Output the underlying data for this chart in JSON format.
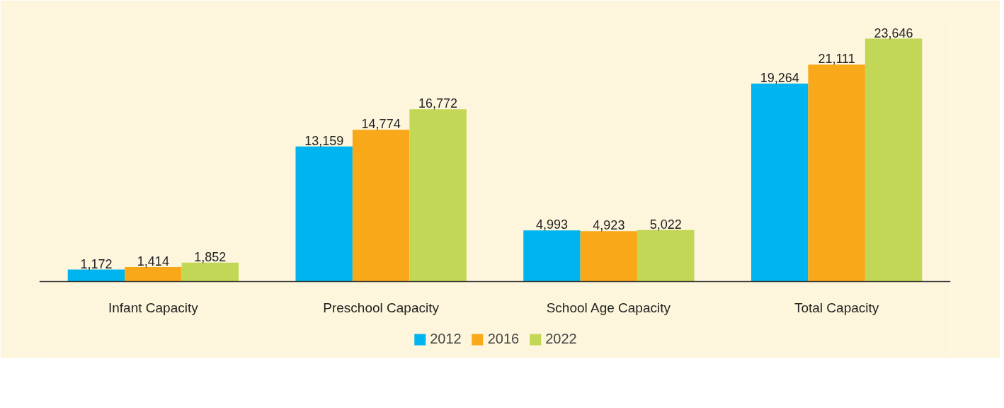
{
  "chart_data": {
    "type": "bar",
    "categories": [
      "Infant Capacity",
      "Preschool Capacity",
      "School Age Capacity",
      "Total Capacity"
    ],
    "series": [
      {
        "name": "2012",
        "color": "#00b5ef",
        "values": [
          1172,
          13159,
          4993,
          19264
        ],
        "value_labels": [
          "1,172",
          "13,159",
          "4,993",
          "19,264"
        ]
      },
      {
        "name": "2016",
        "color": "#f9a81a",
        "values": [
          1414,
          14774,
          4923,
          21111
        ],
        "value_labels": [
          "1,414",
          "14,774",
          "4,923",
          "21,111"
        ]
      },
      {
        "name": "2022",
        "color": "#c2d755",
        "values": [
          1852,
          16772,
          5022,
          23646
        ],
        "value_labels": [
          "1,852",
          "16,772",
          "5,022",
          "23,646"
        ]
      }
    ],
    "legend": "bottom"
  }
}
